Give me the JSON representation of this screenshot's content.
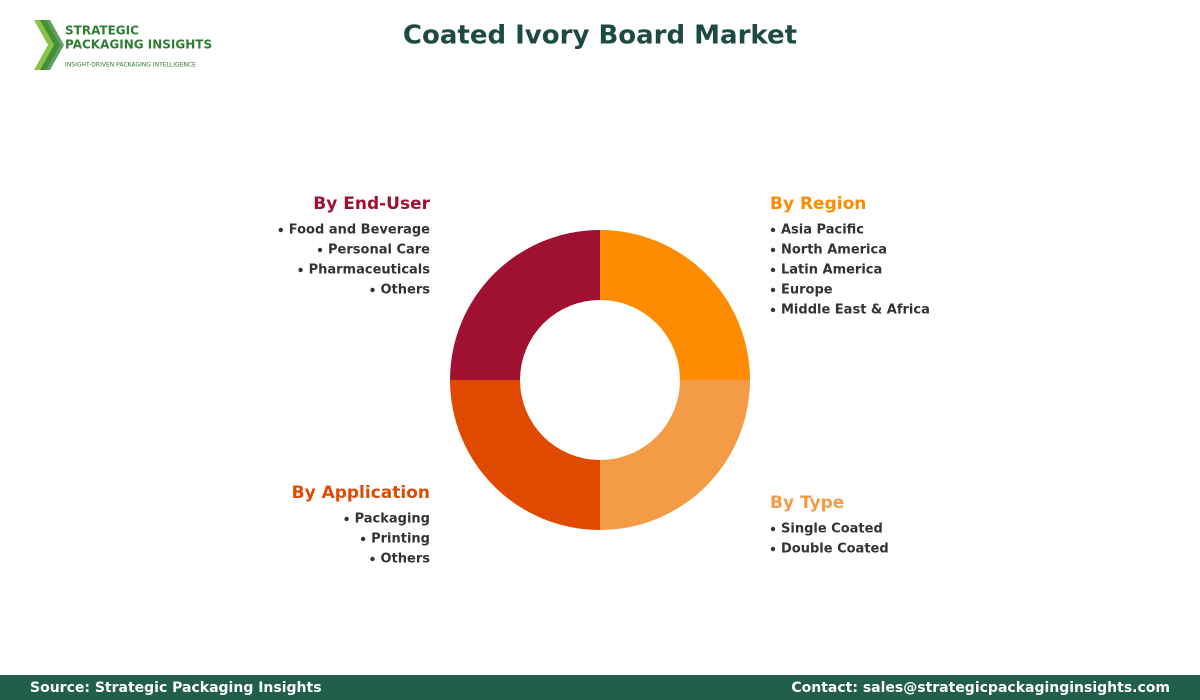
{
  "header": {
    "logo": {
      "line1": "STRATEGIC",
      "line2": "PACKAGING INSIGHTS",
      "tagline": "INSIGHT-DRIVEN PACKAGING INTELLIGENCE"
    },
    "title": "Coated Ivory Board Market"
  },
  "segments": [
    {
      "title": "By Region",
      "color": "#ff8c00",
      "items": [
        "Asia Pacific",
        "North America",
        "Latin America",
        "Europe",
        "Middle East & Africa"
      ]
    },
    {
      "title": "By Type",
      "color": "#f39c45",
      "items": [
        "Single Coated",
        "Double Coated"
      ]
    },
    {
      "title": "By Application",
      "color": "#e04a00",
      "items": [
        "Packaging",
        "Printing",
        "Others"
      ]
    },
    {
      "title": "By End-User",
      "color": "#a01030",
      "items": [
        "Food and Beverage",
        "Personal Care",
        "Pharmaceuticals",
        "Others"
      ]
    }
  ],
  "footer": {
    "source": "Source: Strategic Packaging Insights",
    "contact": "Contact: sales@strategicpackaginginsights.com"
  }
}
